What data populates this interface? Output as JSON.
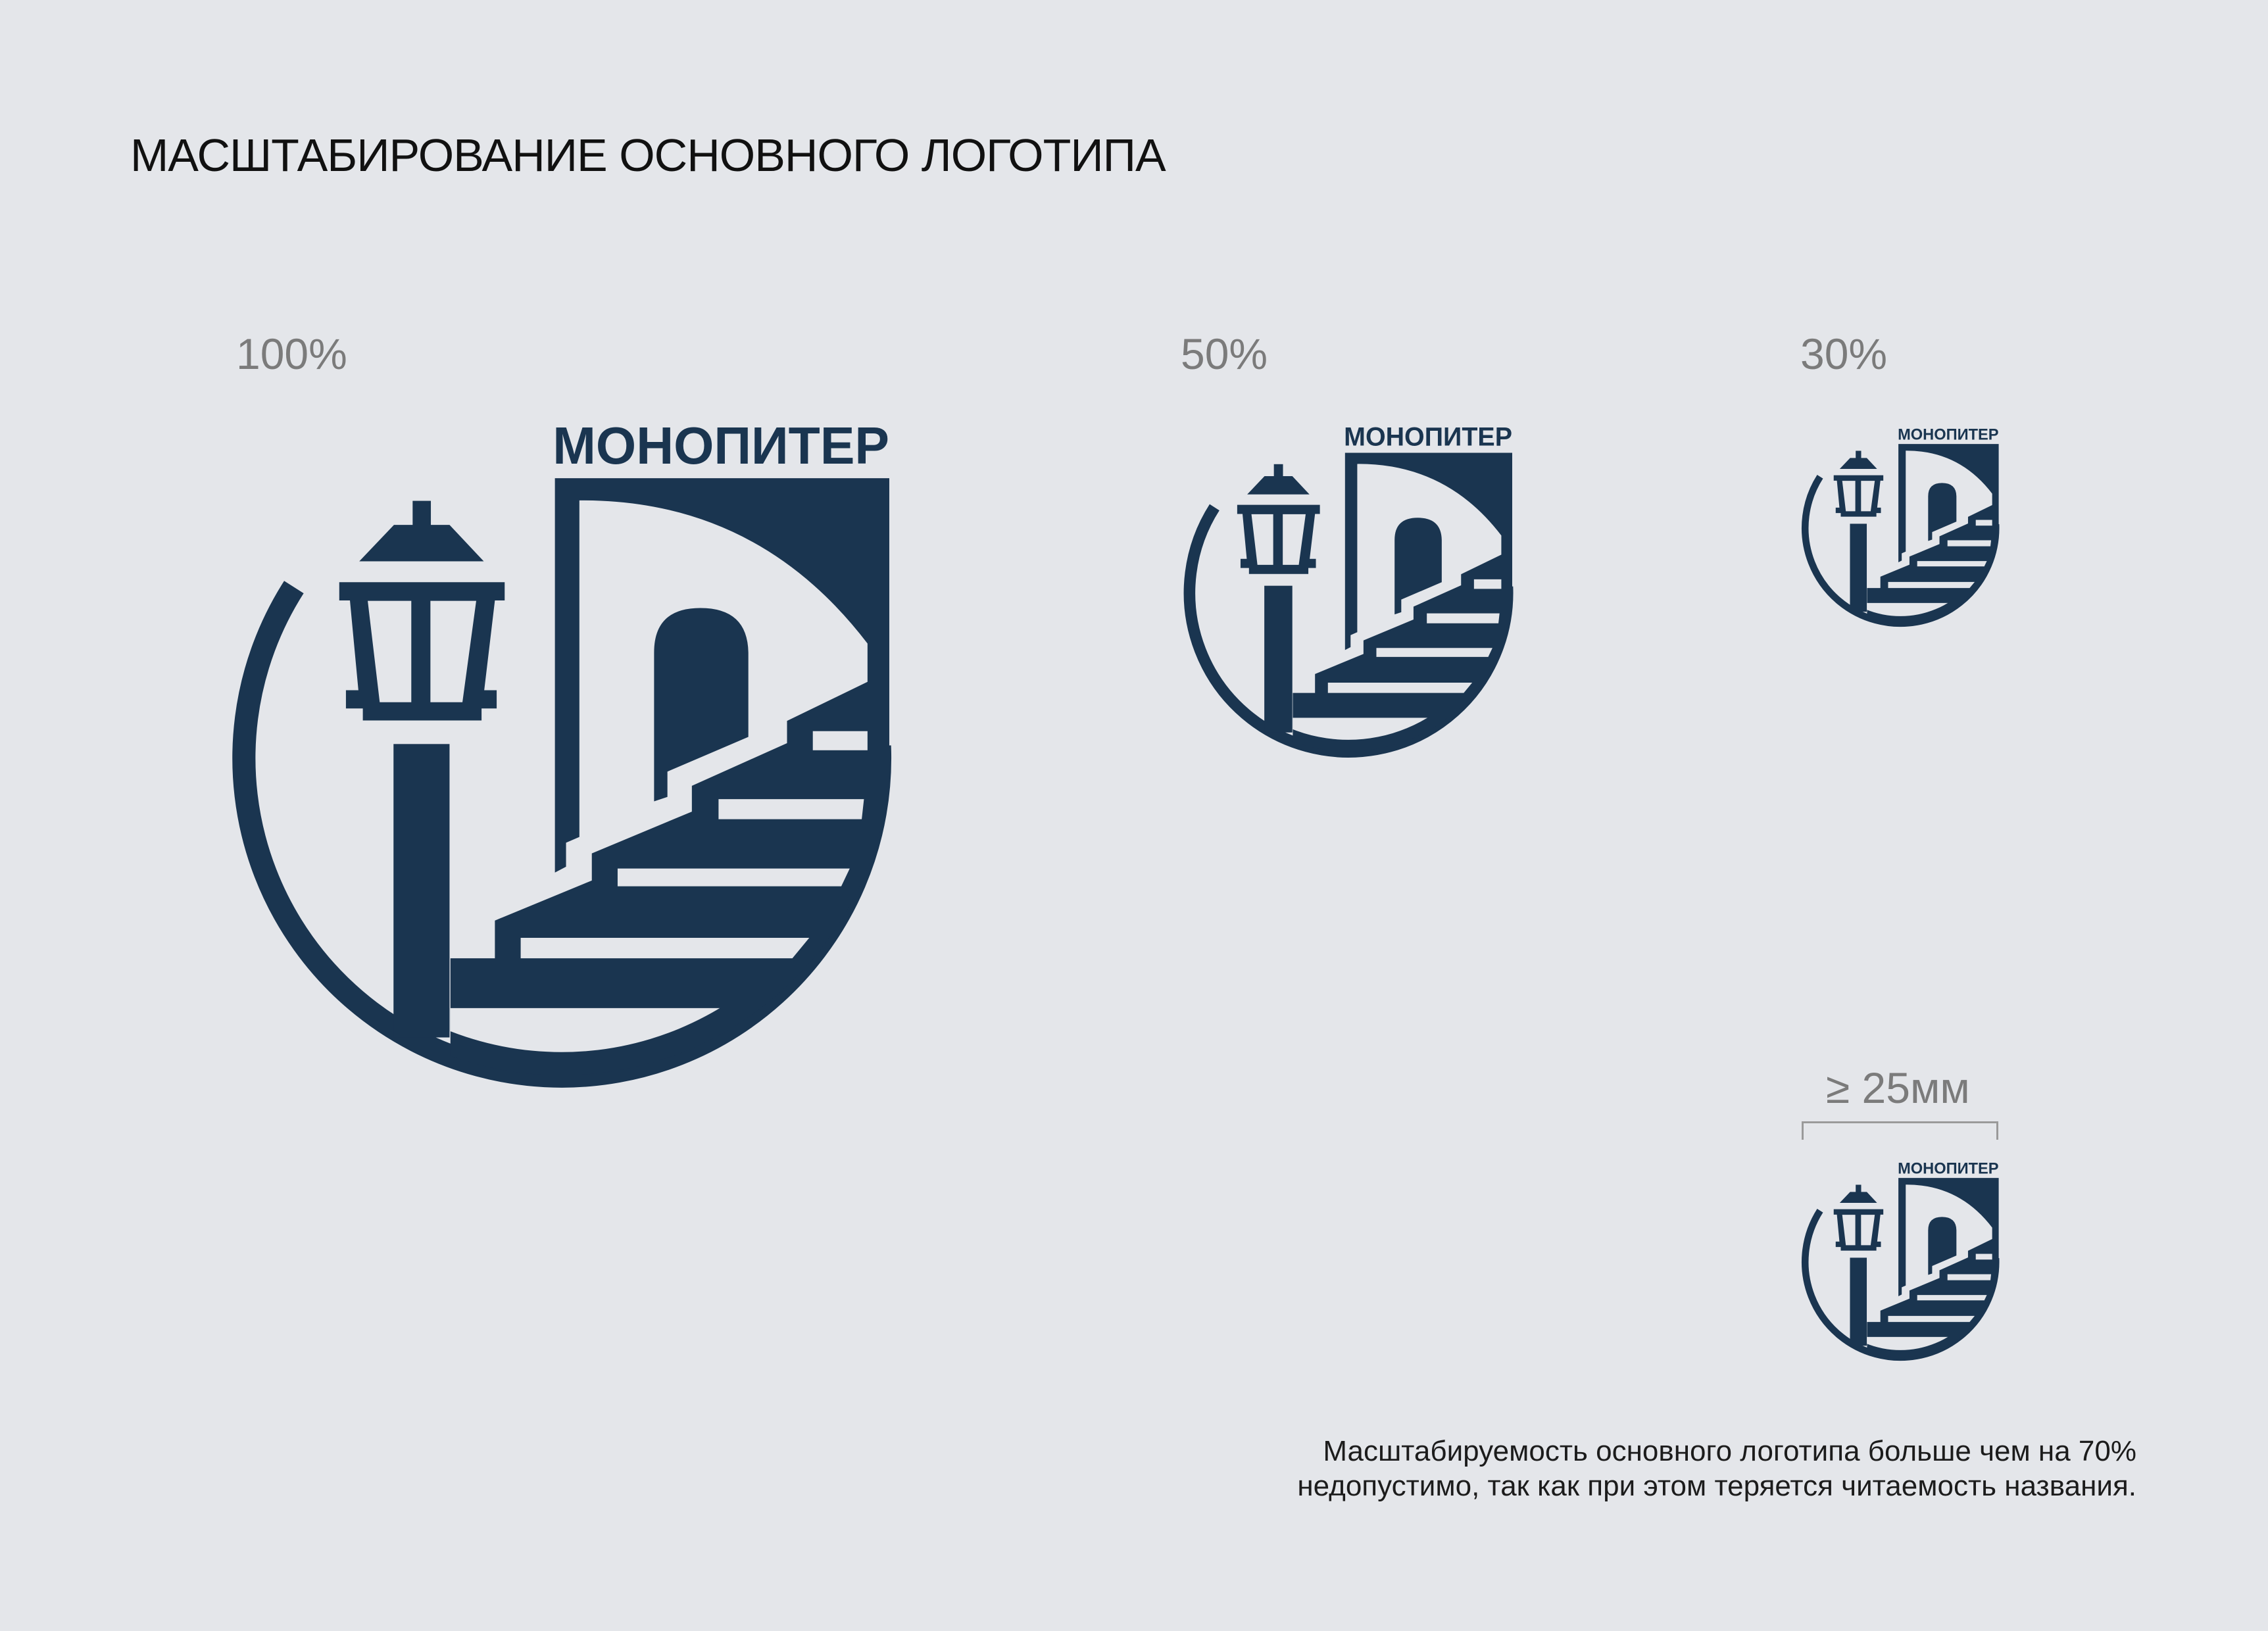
{
  "title": "МАСШТАБИРОВАНИЕ ОСНОВНОГО ЛОГОТИПА",
  "logo": {
    "wordmark": "МОНОПИТЕР",
    "color": "#1a3550"
  },
  "scales": [
    {
      "label": "100%"
    },
    {
      "label": "50%"
    },
    {
      "label": "30%"
    },
    {
      "label": "≥ 25мм"
    }
  ],
  "caption": {
    "line1": "Масштабируемость основного логотипа больше чем на 70%",
    "line2": "недопустимо, так как при этом теряется читаемость названия."
  },
  "colors": {
    "background": "#e4e6ea",
    "label_gray": "#7b7b7b"
  }
}
